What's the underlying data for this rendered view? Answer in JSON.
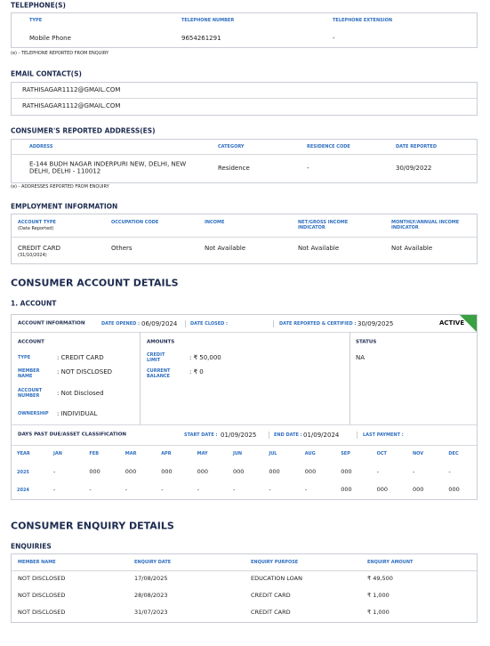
{
  "telephones": {
    "title": "TELEPHONE(S)",
    "headers": [
      "TYPE",
      "TELEPHONE NUMBER",
      "TELEPHONE EXTENSION"
    ],
    "rows": [
      [
        "Mobile Phone",
        "9654261291",
        "-"
      ]
    ],
    "note": "(e) - TELEPHONE REPORTED FROM ENQUIRY"
  },
  "emails": {
    "title": "EMAIL CONTACT(S)",
    "items": [
      "RATHISAGAR1112@GMAIL.COM",
      "RATHISAGAR1112@GMAIL.COM"
    ]
  },
  "addresses": {
    "title": "CONSUMER'S REPORTED ADDRESS(ES)",
    "headers": [
      "ADDRESS",
      "CATEGORY",
      "RESIDENCE CODE",
      "DATE REPORTED"
    ],
    "rows": [
      [
        "E-144 BUDH NAGAR INDERPURI NEW, DELHI, NEW DELHI, DELHI - 110012",
        "Residence",
        "-",
        "30/09/2022"
      ]
    ],
    "note": "(e) - ADDRESSES REPORTED FROM ENQUIRY"
  },
  "employment": {
    "title": "EMPLOYMENT INFORMATION",
    "headers": [
      "ACCOUNT TYPE",
      "OCCUPATION CODE",
      "INCOME",
      "NET/GROSS INCOME INDICATOR",
      "MONTHLY/ANNUAL INCOME INDICATOR"
    ],
    "header_sub": "(Date Reported)",
    "rows": [
      [
        "CREDIT CARD",
        "Others",
        "Not Available",
        "Not Available",
        "Not Available"
      ]
    ],
    "row_sub": "(31/10/2024)"
  },
  "account_details": {
    "title": "CONSUMER ACCOUNT DETAILS",
    "account_title": "1. ACCOUNT",
    "info": {
      "label": "ACCOUNT INFORMATION",
      "date_opened_label": "DATE OPENED :",
      "date_opened": "06/09/2024",
      "date_closed_label": "DATE CLOSED :",
      "date_reported_label": "DATE REPORTED & CERTIFIED :",
      "date_reported": "30/09/2025",
      "status": "ACTIVE"
    },
    "account": {
      "title": "ACCOUNT",
      "fields": [
        {
          "label": "TYPE",
          "value": ": CREDIT CARD"
        },
        {
          "label": "MEMBER NAME",
          "value": ": NOT DISCLOSED"
        },
        {
          "label": "ACCOUNT NUMBER",
          "value": ": Not Disclosed"
        },
        {
          "label": "OWNERSHIP",
          "value": ": INDIVIDUAL"
        }
      ]
    },
    "amounts": {
      "title": "AMOUNTS",
      "fields": [
        {
          "label": "CREDIT LIMIT",
          "value": ": ₹ 50,000"
        },
        {
          "label": "CURRENT BALANCE",
          "value": ": ₹ 0"
        }
      ]
    },
    "status": {
      "title": "STATUS",
      "value": "NA"
    },
    "dpd": {
      "title": "DAYS PAST DUE/ASSET CLASSIFICATION",
      "start_label": "START DATE :",
      "start": "01/09/2025",
      "end_label": "END DATE :",
      "end": "01/09/2024",
      "last_payment_label": "LAST PAYMENT :",
      "headers": [
        "YEAR",
        "JAN",
        "FEB",
        "MAR",
        "APR",
        "MAY",
        "JUN",
        "JUL",
        "AUG",
        "SEP",
        "OCT",
        "NOV",
        "DEC"
      ],
      "rows": [
        [
          "2025",
          "-",
          "000",
          "000",
          "000",
          "000",
          "000",
          "000",
          "000",
          "000",
          "-",
          "-",
          "-"
        ],
        [
          "2024",
          "-",
          "-",
          "-",
          "-",
          "-",
          "-",
          "-",
          "-",
          "000",
          "000",
          "000",
          "000"
        ]
      ]
    }
  },
  "enquiries": {
    "title": "CONSUMER ENQUIRY DETAILS",
    "subtitle": "ENQUIRIES",
    "headers": [
      "MEMBER NAME",
      "ENQUIRY DATE",
      "ENQUIRY PURPOSE",
      "ENQUIRY AMOUNT"
    ],
    "rows": [
      [
        "NOT DISCLOSED",
        "17/08/2025",
        "EDUCATION LOAN",
        "₹ 49,500"
      ],
      [
        "NOT DISCLOSED",
        "28/08/2023",
        "CREDIT CARD",
        "₹ 1,000"
      ],
      [
        "NOT DISCLOSED",
        "31/07/2023",
        "CREDIT CARD",
        "₹ 1,000"
      ]
    ]
  }
}
